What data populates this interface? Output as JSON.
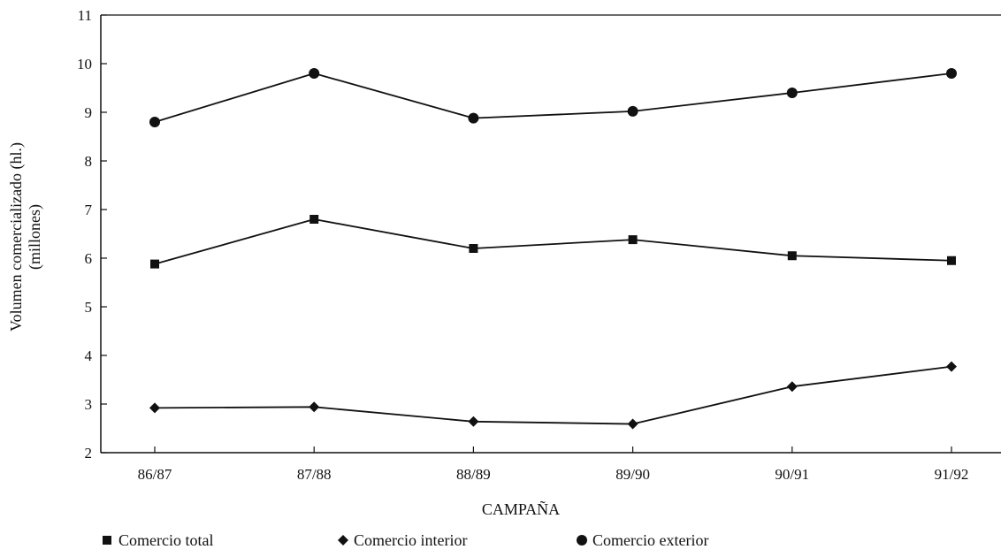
{
  "chart_data": {
    "type": "line",
    "title": "",
    "xlabel": "CAMPAÑA",
    "ylabel": [
      "Volumen comercializado (hl.)",
      "(millones)"
    ],
    "categories": [
      "86/87",
      "87/88",
      "88/89",
      "89/90",
      "90/91",
      "91/92"
    ],
    "ylim": [
      2,
      11
    ],
    "yticks": [
      2,
      3,
      4,
      5,
      6,
      7,
      8,
      9,
      10,
      11
    ],
    "grid": false,
    "legend_position": "bottom",
    "series": [
      {
        "name": "Comercio total",
        "marker": "square",
        "values": [
          5.88,
          6.8,
          6.2,
          6.38,
          6.05,
          5.95
        ]
      },
      {
        "name": "Comercio interior",
        "marker": "diamond",
        "values": [
          2.92,
          2.94,
          2.64,
          2.59,
          3.36,
          3.77
        ]
      },
      {
        "name": "Comercio exterior",
        "marker": "circle",
        "values": [
          8.8,
          9.8,
          8.88,
          9.02,
          9.4,
          9.8
        ]
      }
    ],
    "colors": {
      "line": "#111111",
      "marker": "#111111"
    }
  }
}
